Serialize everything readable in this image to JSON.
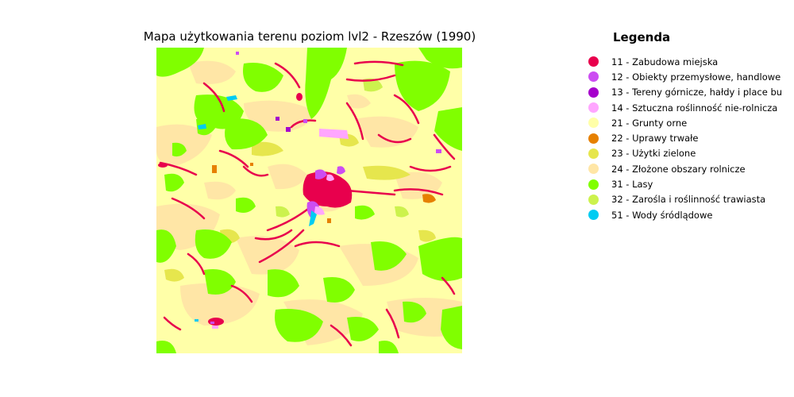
{
  "title": "Mapa użytkowania terenu poziom lvl2 - Rzeszów (1990)",
  "legend": {
    "title": "Legenda",
    "items": [
      {
        "code": "11",
        "label": "11 - Zabudowa miejska",
        "color": "#e8004d",
        "name": "urban"
      },
      {
        "code": "12",
        "label": "12 - Obiekty przemysłowe, handlowe",
        "color": "#cc4df2",
        "name": "industrial"
      },
      {
        "code": "13",
        "label": "13 - Tereny górnicze, hałdy i place bu",
        "color": "#a600cc",
        "name": "mining"
      },
      {
        "code": "14",
        "label": "14 - Sztuczna roślinność nie-rolnicza",
        "color": "#ffa6ff",
        "name": "artificial-vegetation"
      },
      {
        "code": "21",
        "label": "21 - Grunty orne",
        "color": "#ffffa8",
        "name": "arable"
      },
      {
        "code": "22",
        "label": "22 - Uprawy trwałe",
        "color": "#e68000",
        "name": "permanent-crops"
      },
      {
        "code": "23",
        "label": "23 - Użytki zielone",
        "color": "#e6e64d",
        "name": "pastures"
      },
      {
        "code": "24",
        "label": "24 - Złożone obszary rolnicze",
        "color": "#ffe6a6",
        "name": "heterogeneous-agri"
      },
      {
        "code": "31",
        "label": "31 - Lasy",
        "color": "#80ff00",
        "name": "forest"
      },
      {
        "code": "32",
        "label": "32 - Zarośla i roślinność trawiasta",
        "color": "#ccf24d",
        "name": "shrub"
      },
      {
        "code": "51",
        "label": "51 - Wody śródlądowe",
        "color": "#00ccf2",
        "name": "inland-water"
      }
    ]
  }
}
